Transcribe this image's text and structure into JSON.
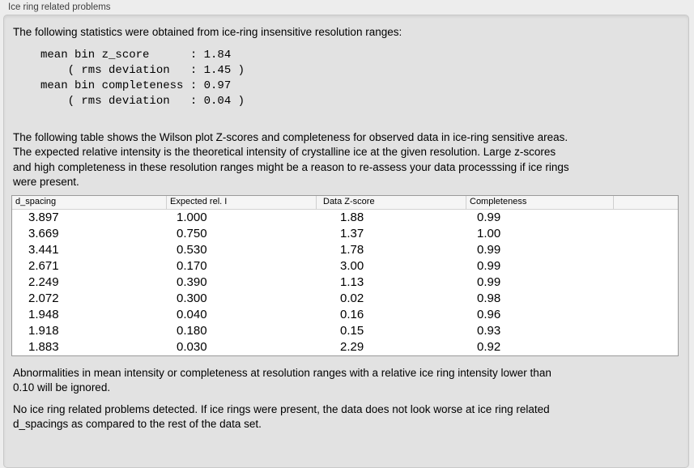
{
  "colors": {
    "page_bg": "#ededed",
    "box_bg": "#e2e2e2",
    "box_border": "#c8c8c8",
    "title_text": "#3f3f3f",
    "body_text": "#000000",
    "table_bg": "#ffffff",
    "table_border": "#9a9a9a",
    "table_header_bg": "#f5f5f5",
    "table_header_line": "#d2d2d2"
  },
  "section": {
    "title": "Ice ring related problems"
  },
  "stats": {
    "intro": "The following statistics were obtained from ice-ring insensitive resolution ranges:",
    "summary_block": "mean bin z_score      : 1.84\n    ( rms deviation   : 1.45 )\nmean bin completeness : 0.97\n    ( rms deviation   : 0.04 )"
  },
  "table_section": {
    "description": "The following table shows the Wilson plot Z-scores and completeness for observed data in ice-ring sensitive areas.\nThe expected relative intensity is the theoretical intensity of crystalline ice at the given resolution. Large z-scores\nand high completeness in these resolution ranges might be a reason to re-assess your data processsing if ice rings\nwere present."
  },
  "table": {
    "columns": [
      "d_spacing",
      "Expected rel. I",
      "Data Z-score",
      "Completeness"
    ],
    "rows": [
      {
        "d_spacing": "3.897",
        "expected_rel_i": "1.000",
        "data_z_score": "1.88",
        "completeness": "0.99"
      },
      {
        "d_spacing": "3.669",
        "expected_rel_i": "0.750",
        "data_z_score": "1.37",
        "completeness": "1.00"
      },
      {
        "d_spacing": "3.441",
        "expected_rel_i": "0.530",
        "data_z_score": "1.78",
        "completeness": "0.99"
      },
      {
        "d_spacing": "2.671",
        "expected_rel_i": "0.170",
        "data_z_score": "3.00",
        "completeness": "0.99"
      },
      {
        "d_spacing": "2.249",
        "expected_rel_i": "0.390",
        "data_z_score": "1.13",
        "completeness": "0.99"
      },
      {
        "d_spacing": "2.072",
        "expected_rel_i": "0.300",
        "data_z_score": "0.02",
        "completeness": "0.98"
      },
      {
        "d_spacing": "1.948",
        "expected_rel_i": "0.040",
        "data_z_score": "0.16",
        "completeness": "0.96"
      },
      {
        "d_spacing": "1.918",
        "expected_rel_i": "0.180",
        "data_z_score": "0.15",
        "completeness": "0.93"
      },
      {
        "d_spacing": "1.883",
        "expected_rel_i": "0.030",
        "data_z_score": "2.29",
        "completeness": "0.92"
      }
    ]
  },
  "footer": {
    "note1": "Abnormalities in mean intensity or completeness at resolution ranges with a relative ice ring intensity lower than\n0.10 will be ignored.",
    "note2": "No ice ring related problems detected. If ice rings were present, the data does not look worse at ice ring related\nd_spacings as compared to the rest of the data set."
  }
}
